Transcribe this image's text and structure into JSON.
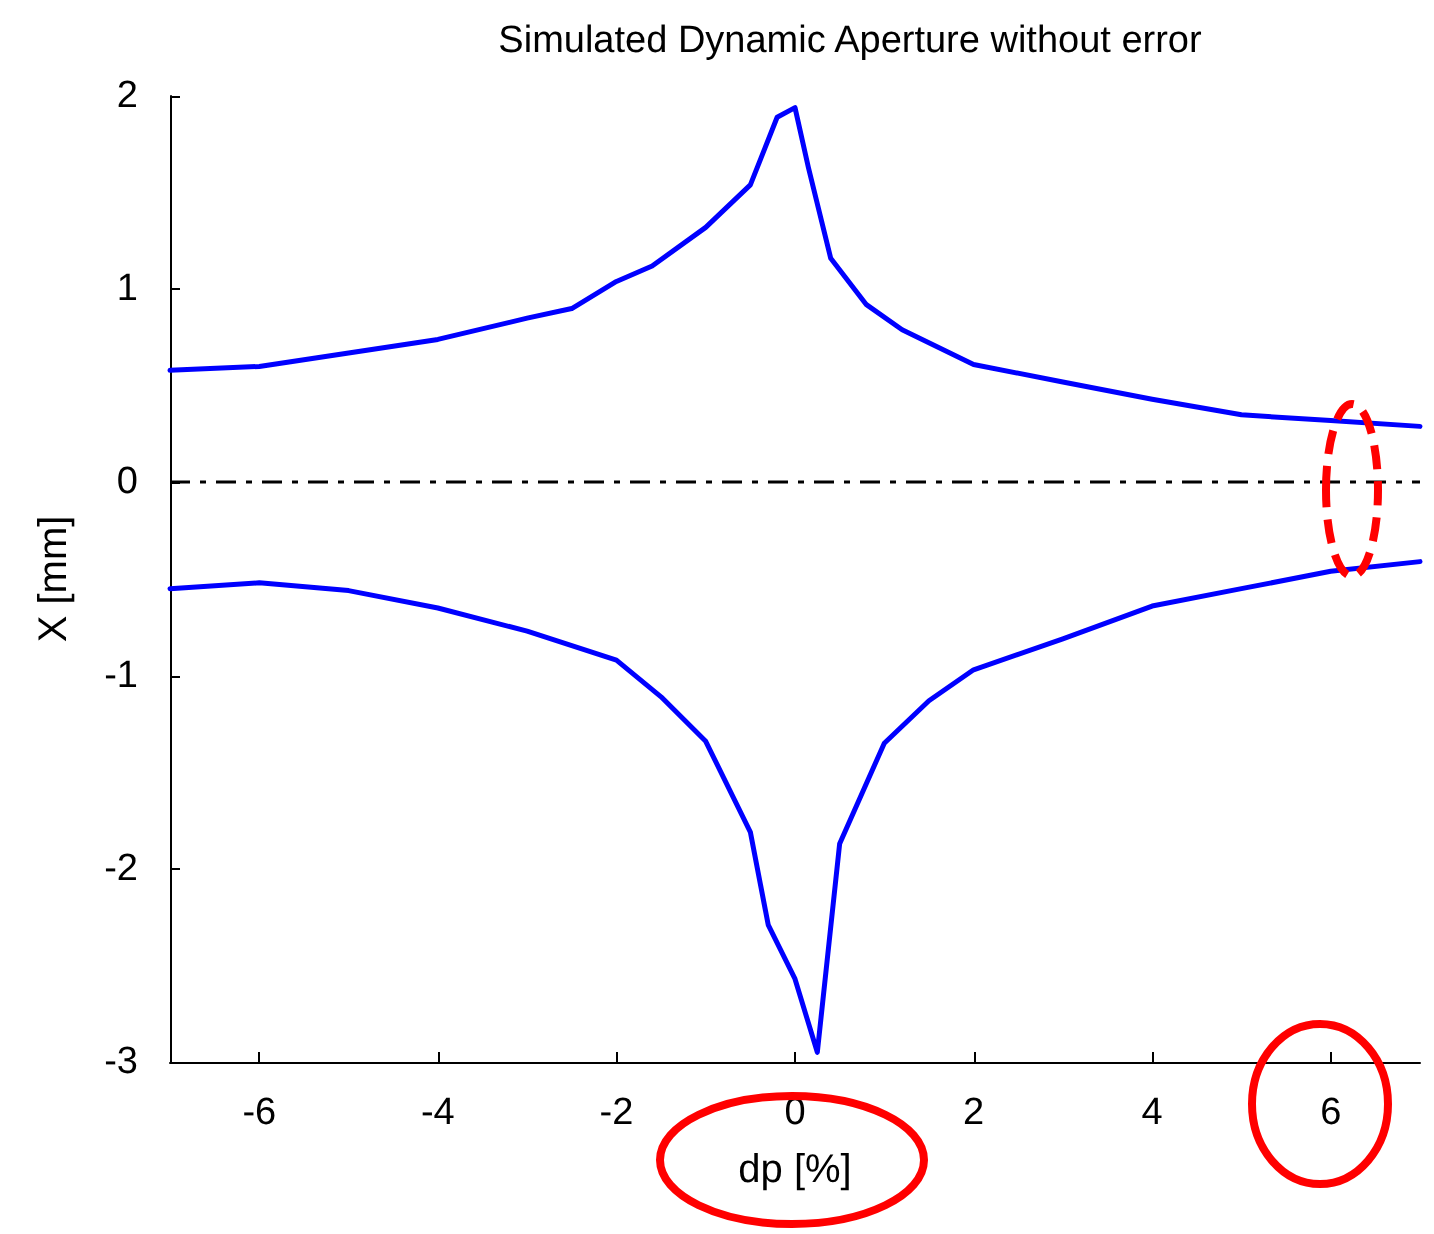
{
  "chart_data": {
    "type": "line",
    "title": "Simulated Dynamic Aperture without error",
    "xlabel": "dp [%]",
    "ylabel": "X [mm]",
    "xlim": [
      -7,
      7
    ],
    "xticks": [
      -6,
      -4,
      -2,
      0,
      2,
      4,
      6
    ],
    "ylim": [
      -3,
      2
    ],
    "yticks": [
      -3,
      -2,
      -1,
      0,
      1,
      2
    ],
    "grid": false,
    "marker": "none",
    "line_style": "solid",
    "ref_lines": [
      {
        "axis": "y",
        "value": 0,
        "color": "#000000",
        "line_style": "dashed"
      }
    ],
    "series": [
      {
        "color": "#0000ff",
        "x": [
          -7,
          -6,
          -5,
          -4,
          -3,
          -2.5,
          -2,
          -1.6,
          -1,
          -0.5,
          -0.2,
          0,
          0.15,
          0.4,
          0.8,
          1.2,
          2,
          3,
          4,
          5,
          6,
          7
        ],
        "values": [
          0.58,
          0.6,
          0.67,
          0.74,
          0.85,
          0.9,
          1.04,
          1.12,
          1.32,
          1.54,
          1.89,
          1.94,
          1.63,
          1.16,
          0.92,
          0.79,
          0.61,
          0.52,
          0.43,
          0.35,
          0.32,
          0.29
        ]
      },
      {
        "color": "#0000ff",
        "x": [
          -7,
          -6,
          -5,
          -4,
          -3,
          -2,
          -1.5,
          -1,
          -0.5,
          -0.3,
          0,
          0.25,
          0.5,
          1,
          1.5,
          2,
          3,
          4,
          5,
          6,
          7
        ],
        "values": [
          -0.55,
          -0.52,
          -0.56,
          -0.65,
          -0.77,
          -0.92,
          -1.11,
          -1.34,
          -1.81,
          -2.29,
          -2.57,
          -2.95,
          -1.87,
          -1.35,
          -1.13,
          -0.97,
          -0.81,
          -0.64,
          -0.55,
          -0.46,
          -0.41
        ]
      }
    ]
  }
}
